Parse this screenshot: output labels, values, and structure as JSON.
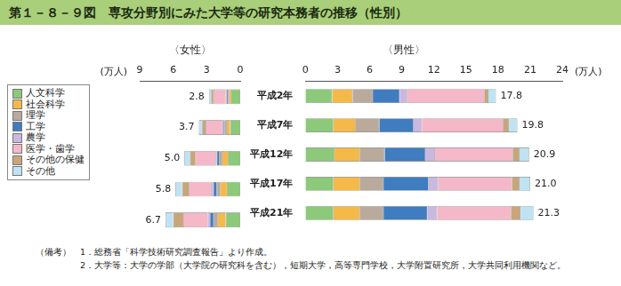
{
  "title": "第１－８－９図　専攻分野別にみた大学等の研究本務者の推移（性別）",
  "notes": {
    "label": "（備考）",
    "items": [
      "1．総務省「科学技術研究調査報告」より作成。",
      "2．大学等：大学の学部（大学院の研究科を含む），短期大学，高等専門学校，大学附置研究所，大学共同利用機関など。"
    ]
  },
  "chart_data": [
    {
      "type": "bar",
      "title": "〈女性〉",
      "orientation": "horizontal",
      "stacked": true,
      "grid": false,
      "legend": "left",
      "tick_labels": "x",
      "xlabel": "(万人)",
      "categories": [
        "平成2年",
        "平成7年",
        "平成12年",
        "平成17年",
        "平成21年"
      ],
      "xlim": [
        9,
        0
      ],
      "xticks": [
        9,
        6,
        3,
        0
      ],
      "series": [
        {
          "name": "人文科学",
          "color": "#8cc97a",
          "values": [
            0.8,
            0.9,
            1.1,
            1.2,
            1.3
          ]
        },
        {
          "name": "社会科学",
          "color": "#f5b94a",
          "values": [
            0.2,
            0.3,
            0.5,
            0.6,
            0.7
          ]
        },
        {
          "name": "理学",
          "color": "#b9aa9b",
          "values": [
            0.1,
            0.2,
            0.3,
            0.3,
            0.4
          ]
        },
        {
          "name": "工学",
          "color": "#3f7cc0",
          "values": [
            0.1,
            0.1,
            0.2,
            0.3,
            0.3
          ]
        },
        {
          "name": "農学",
          "color": "#c9b8e0",
          "values": [
            0.1,
            0.1,
            0.1,
            0.2,
            0.2
          ]
        },
        {
          "name": "医学・歯学",
          "color": "#f5b8c8",
          "values": [
            1.1,
            1.5,
            1.8,
            2.0,
            2.2
          ]
        },
        {
          "name": "その他の保健",
          "color": "#c9a57a",
          "values": [
            0.2,
            0.3,
            0.5,
            0.6,
            0.9
          ]
        },
        {
          "name": "その他",
          "color": "#bfe3f2",
          "values": [
            0.2,
            0.3,
            0.5,
            0.6,
            0.7
          ]
        }
      ],
      "totals": [
        2.8,
        3.7,
        5.0,
        5.8,
        6.7
      ],
      "total_labels": [
        "2.8",
        "3.7",
        "5.0",
        "5.8",
        "6.7"
      ]
    },
    {
      "type": "bar",
      "title": "〈男性〉",
      "orientation": "horizontal",
      "stacked": true,
      "grid": false,
      "xlabel": "(万人)",
      "categories": [
        "平成2年",
        "平成7年",
        "平成12年",
        "平成17年",
        "平成21年"
      ],
      "xlim": [
        0,
        24
      ],
      "xticks": [
        0,
        3,
        6,
        9,
        12,
        15,
        18,
        21,
        24
      ],
      "series": [
        {
          "name": "人文科学",
          "color": "#8cc97a",
          "values": [
            2.5,
            2.6,
            2.7,
            2.6,
            2.6
          ]
        },
        {
          "name": "社会科学",
          "color": "#f5b94a",
          "values": [
            1.9,
            2.1,
            2.4,
            2.5,
            2.5
          ]
        },
        {
          "name": "理学",
          "color": "#b9aa9b",
          "values": [
            1.9,
            2.2,
            2.3,
            2.2,
            2.2
          ]
        },
        {
          "name": "工学",
          "color": "#3f7cc0",
          "values": [
            2.5,
            3.2,
            3.8,
            4.2,
            4.1
          ]
        },
        {
          "name": "農学",
          "color": "#c9b8e0",
          "values": [
            0.7,
            0.8,
            0.9,
            0.9,
            0.9
          ]
        },
        {
          "name": "医学・歯学",
          "color": "#f5b8c8",
          "values": [
            7.2,
            7.6,
            7.3,
            6.9,
            6.9
          ]
        },
        {
          "name": "その他の保健",
          "color": "#c9a57a",
          "values": [
            0.4,
            0.5,
            0.6,
            0.7,
            0.9
          ]
        },
        {
          "name": "その他",
          "color": "#bfe3f2",
          "values": [
            0.7,
            0.8,
            0.9,
            1.0,
            1.2
          ]
        }
      ],
      "totals": [
        17.8,
        19.8,
        20.9,
        21.0,
        21.3
      ],
      "total_labels": [
        "17.8",
        "19.8",
        "20.9",
        "21.0",
        "21.3"
      ]
    }
  ]
}
